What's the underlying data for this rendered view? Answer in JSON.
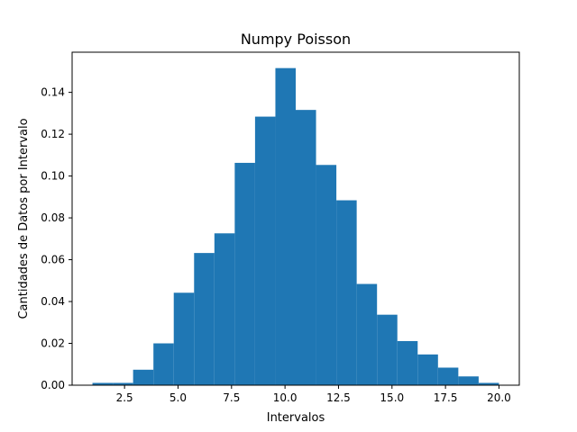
{
  "chart_data": {
    "type": "bar",
    "title": "Numpy Poisson",
    "xlabel": "Intervalos",
    "ylabel": "Cantidades de Datos por Intervalo",
    "bin_edges": [
      1.0,
      1.95,
      2.9,
      3.85,
      4.8,
      5.75,
      6.7,
      7.65,
      8.6,
      9.55,
      10.5,
      11.45,
      12.4,
      13.35,
      14.3,
      15.25,
      16.2,
      17.15,
      18.1,
      19.05,
      20.0
    ],
    "values": [
      0.0011,
      0.0011,
      0.0074,
      0.02,
      0.0442,
      0.0632,
      0.0726,
      0.1063,
      0.1284,
      0.1516,
      0.1316,
      0.1053,
      0.0884,
      0.0484,
      0.0337,
      0.0211,
      0.0147,
      0.0084,
      0.0042,
      0.0011
    ],
    "xlim": [
      0.05,
      20.95
    ],
    "ylim": [
      0,
      0.1592
    ],
    "xticks": [
      2.5,
      5.0,
      7.5,
      10.0,
      12.5,
      15.0,
      17.5,
      20.0
    ],
    "xtick_labels": [
      "2.5",
      "5.0",
      "7.5",
      "10.0",
      "12.5",
      "15.0",
      "17.5",
      "20.0"
    ],
    "yticks": [
      0.0,
      0.02,
      0.04,
      0.06,
      0.08,
      0.1,
      0.12,
      0.14
    ],
    "ytick_labels": [
      "0.00",
      "0.02",
      "0.04",
      "0.06",
      "0.08",
      "0.10",
      "0.12",
      "0.14"
    ],
    "bar_color": "#1f77b4",
    "grid": false
  }
}
